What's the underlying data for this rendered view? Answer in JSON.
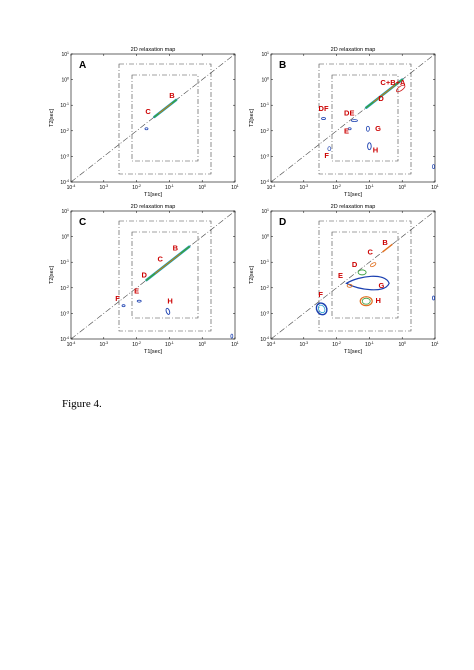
{
  "figure": {
    "caption": "Figure 4.",
    "panels": [
      {
        "id": "A",
        "title": "2D relaxation map",
        "xlabel": "T1[sec]",
        "ylabel": "T2[sec]",
        "x_ticks": [
          "10^-4",
          "10^-3",
          "10^-2",
          "10^-1",
          "10^0",
          "10^1"
        ],
        "y_ticks": [
          "10^1",
          "10^0",
          "10^-1",
          "10^-2",
          "10^-3",
          "10^-4"
        ],
        "peaks": [
          {
            "label": "B",
            "t1": 0.12,
            "t2": 0.12
          },
          {
            "label": "C",
            "t1": 0.045,
            "t2": 0.045
          }
        ]
      },
      {
        "id": "B",
        "title": "2D relaxation map",
        "xlabel": "T1[sec]",
        "ylabel": "T2[sec]",
        "x_ticks": [
          "10^-4",
          "10^-3",
          "10^-2",
          "10^-1",
          "10^0",
          "10^1"
        ],
        "y_ticks": [
          "10^1",
          "10^0",
          "10^-1",
          "10^-2",
          "10^-3",
          "10^-4"
        ],
        "peaks": [
          {
            "label": "C+B+A",
            "t1": 0.6,
            "t2": 0.3
          },
          {
            "label": "D",
            "t1": 0.3,
            "t2": 0.1
          },
          {
            "label": "DF",
            "t1": 0.004,
            "t2": 0.06
          },
          {
            "label": "DE",
            "t1": 0.03,
            "t2": 0.04
          },
          {
            "label": "E",
            "t1": 0.02,
            "t2": 0.008
          },
          {
            "label": "G",
            "t1": 0.12,
            "t2": 0.01
          },
          {
            "label": "F",
            "t1": 0.005,
            "t2": 0.0015
          },
          {
            "label": "H",
            "t1": 0.1,
            "t2": 0.002
          }
        ]
      },
      {
        "id": "C",
        "title": "2D relaxation map",
        "xlabel": "T1[sec]",
        "ylabel": "T2[sec]",
        "x_ticks": [
          "10^-4",
          "10^-3",
          "10^-2",
          "10^-1",
          "10^0",
          "10^1"
        ],
        "y_ticks": [
          "10^1",
          "10^0",
          "10^-1",
          "10^-2",
          "10^-3",
          "10^-4"
        ],
        "peaks": [
          {
            "label": "B",
            "t1": 0.2,
            "t2": 0.2
          },
          {
            "label": "C",
            "t1": 0.08,
            "t2": 0.08
          },
          {
            "label": "D",
            "t1": 0.03,
            "t2": 0.025
          },
          {
            "label": "E",
            "t1": 0.01,
            "t2": 0.005
          },
          {
            "label": "F",
            "t1": 0.004,
            "t2": 0.003
          },
          {
            "label": "H",
            "t1": 0.06,
            "t2": 0.002
          }
        ]
      },
      {
        "id": "D",
        "title": "2D relaxation map",
        "xlabel": "T1[sec]",
        "ylabel": "T2[sec]",
        "x_ticks": [
          "10^-4",
          "10^-3",
          "10^-2",
          "10^-1",
          "10^0",
          "10^1"
        ],
        "y_ticks": [
          "10^1",
          "10^0",
          "10^-1",
          "10^-2",
          "10^-3",
          "10^-4"
        ],
        "peaks": [
          {
            "label": "B",
            "t1": 0.3,
            "t2": 0.3
          },
          {
            "label": "C",
            "t1": 0.15,
            "t2": 0.15
          },
          {
            "label": "D",
            "t1": 0.05,
            "t2": 0.05
          },
          {
            "label": "E",
            "t1": 0.02,
            "t2": 0.02
          },
          {
            "label": "G",
            "t1": 0.1,
            "t2": 0.01
          },
          {
            "label": "F",
            "t1": 0.005,
            "t2": 0.003
          },
          {
            "label": "H",
            "t1": 0.08,
            "t2": 0.003
          }
        ]
      }
    ]
  },
  "colors": {
    "label": "#cc0000",
    "contour_blue": "#1a3fb0",
    "contour_cyan": "#22a0d0",
    "contour_green": "#3aa040",
    "contour_orange": "#e07020",
    "contour_red": "#d02020",
    "axis": "#000000",
    "dash": "#444444"
  }
}
